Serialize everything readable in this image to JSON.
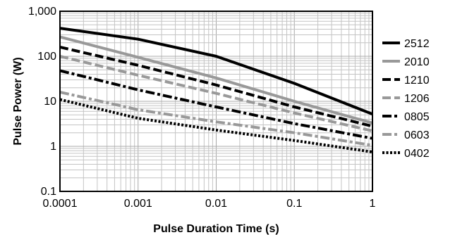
{
  "chart_data": {
    "type": "line",
    "xlabel": "Pulse Duration Time (s)",
    "ylabel": "Pulse Power (W)",
    "x_scale": "log",
    "y_scale": "log",
    "xlim": [
      0.0001,
      1
    ],
    "ylim": [
      0.1,
      1000
    ],
    "grid": true,
    "legend_position": "right",
    "x_ticks": [
      {
        "value": 0.0001,
        "label": "0.0001"
      },
      {
        "value": 0.001,
        "label": "0.001"
      },
      {
        "value": 0.01,
        "label": "0.01"
      },
      {
        "value": 0.1,
        "label": "0.1"
      },
      {
        "value": 1,
        "label": "1"
      }
    ],
    "y_ticks": [
      {
        "value": 0.1,
        "label": "0.1"
      },
      {
        "value": 1,
        "label": "1"
      },
      {
        "value": 10,
        "label": "10"
      },
      {
        "value": 100,
        "label": "100"
      },
      {
        "value": 1000,
        "label": "1,000"
      }
    ],
    "x": [
      0.0001,
      0.001,
      0.01,
      0.1,
      1
    ],
    "series": [
      {
        "name": "2512",
        "color": "#000000",
        "dash": "solid",
        "values": [
          420,
          240,
          100,
          25,
          5.2
        ]
      },
      {
        "name": "2010",
        "color": "#999999",
        "dash": "solid",
        "values": [
          270,
          95,
          33,
          10,
          3.3
        ]
      },
      {
        "name": "1210",
        "color": "#000000",
        "dash": "dash",
        "values": [
          160,
          63,
          23,
          7.5,
          2.8
        ]
      },
      {
        "name": "1206",
        "color": "#999999",
        "dash": "dash",
        "values": [
          100,
          38,
          15,
          5.5,
          2.2
        ]
      },
      {
        "name": "0805",
        "color": "#000000",
        "dash": "dashdot",
        "values": [
          48,
          18,
          7.5,
          3.2,
          1.5
        ]
      },
      {
        "name": "0603",
        "color": "#999999",
        "dash": "dashdot",
        "values": [
          16,
          6.5,
          3.5,
          2.0,
          1.05
        ]
      },
      {
        "name": "0402",
        "color": "#000000",
        "dash": "dotted",
        "values": [
          11,
          4.2,
          2.3,
          1.35,
          0.75
        ]
      }
    ]
  }
}
